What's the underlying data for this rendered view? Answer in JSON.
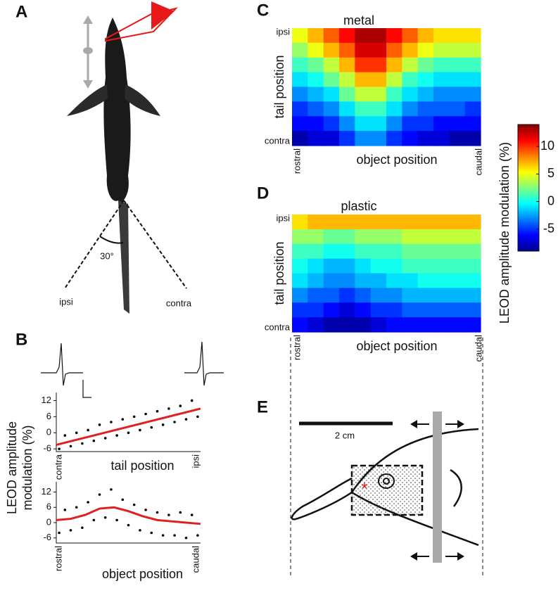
{
  "panel_labels": [
    "A",
    "B",
    "C",
    "D",
    "E"
  ],
  "diagram_a": {
    "angle": "30°",
    "left": "ipsi",
    "right": "contra"
  },
  "diagram_e": {
    "scale": "2 cm"
  },
  "panel_b": {
    "ylabel": [
      "LEOD amplitude",
      "modulation (%)"
    ]
  },
  "chart_data": [
    {
      "type": "scatter",
      "xlabel": "tail position",
      "x_end_labels": [
        "contra",
        "ipsi"
      ],
      "xlim": [
        0,
        1
      ],
      "ylim": [
        -7,
        15
      ],
      "yticks": [
        -6,
        0,
        6,
        12
      ],
      "color": "#000000",
      "x": [
        0.02,
        0.06,
        0.1,
        0.14,
        0.18,
        0.22,
        0.26,
        0.3,
        0.34,
        0.38,
        0.42,
        0.46,
        0.5,
        0.54,
        0.58,
        0.62,
        0.66,
        0.7,
        0.74,
        0.78,
        0.82,
        0.86,
        0.9,
        0.94,
        0.98
      ],
      "y": [
        -6,
        -1,
        -5,
        0,
        -4,
        1,
        -3,
        3,
        -2,
        4,
        -1,
        5,
        0,
        6,
        1,
        7,
        2,
        8,
        3,
        9,
        4,
        10,
        5,
        12,
        6
      ],
      "fit": {
        "color": "#e02020",
        "x": [
          0,
          1
        ],
        "y": [
          -4.5,
          9
        ]
      }
    },
    {
      "type": "scatter",
      "xlabel": "object position",
      "x_end_labels": [
        "rostral",
        "caudal"
      ],
      "xlim": [
        0,
        1
      ],
      "ylim": [
        -8,
        16
      ],
      "yticks": [
        -6,
        0,
        6,
        12
      ],
      "color": "#000000",
      "x": [
        0.02,
        0.06,
        0.1,
        0.14,
        0.18,
        0.22,
        0.26,
        0.3,
        0.34,
        0.38,
        0.42,
        0.46,
        0.5,
        0.54,
        0.58,
        0.62,
        0.66,
        0.7,
        0.74,
        0.78,
        0.82,
        0.86,
        0.9,
        0.94,
        0.98
      ],
      "y": [
        -4,
        5,
        -3,
        6,
        -2,
        8,
        1,
        11,
        2,
        13,
        1,
        9,
        -1,
        7,
        -3,
        5,
        -4,
        4,
        -5,
        3,
        -5,
        4,
        -6,
        3,
        -5
      ],
      "fit": {
        "color": "#e02020",
        "x": [
          0,
          0.1,
          0.2,
          0.3,
          0.4,
          0.5,
          0.6,
          0.7,
          0.8,
          0.9,
          1
        ],
        "y": [
          1,
          1.5,
          3,
          5.5,
          6,
          4.5,
          2.5,
          1,
          0.5,
          0,
          -0.5
        ]
      }
    },
    {
      "type": "heatmap",
      "title": "metal",
      "xlabel": "object position",
      "ylabel": "tail position",
      "x_end_labels": [
        "rostral",
        "caudal"
      ],
      "y_end_labels": [
        "ipsi",
        "contra"
      ],
      "clim": [
        -9,
        14
      ],
      "colormap": "jet",
      "z": [
        [
          5,
          7,
          9,
          11,
          13,
          13,
          11,
          9,
          7,
          6,
          6,
          6
        ],
        [
          3,
          5,
          7,
          9,
          12,
          12,
          9,
          7,
          5,
          4,
          4,
          4
        ],
        [
          1,
          2,
          4,
          7,
          10,
          10,
          7,
          4,
          2,
          1,
          1,
          1
        ],
        [
          -1,
          0,
          2,
          4,
          7,
          7,
          4,
          1,
          0,
          -1,
          -1,
          -1
        ],
        [
          -3,
          -2,
          -1,
          2,
          4,
          4,
          1,
          -1,
          -2,
          -3,
          -3,
          -3
        ],
        [
          -5,
          -4,
          -3,
          -1,
          1,
          1,
          -1,
          -3,
          -4,
          -4,
          -4,
          -5
        ],
        [
          -6,
          -6,
          -5,
          -3,
          -1,
          -1,
          -3,
          -5,
          -5,
          -6,
          -6,
          -6
        ],
        [
          -8,
          -7,
          -7,
          -5,
          -3,
          -3,
          -5,
          -6,
          -7,
          -7,
          -8,
          -8
        ]
      ]
    },
    {
      "type": "heatmap",
      "title": "plastic",
      "xlabel": "object position",
      "ylabel": "tail position",
      "x_end_labels": [
        "rostral",
        "caudal"
      ],
      "y_end_labels": [
        "ipsi",
        "contra"
      ],
      "clim": [
        -9,
        14
      ],
      "colormap": "jet",
      "z": [
        [
          6,
          7,
          7,
          7,
          7,
          7,
          7,
          7,
          7,
          7,
          7,
          7
        ],
        [
          3,
          3,
          2,
          2,
          3,
          3,
          3,
          4,
          4,
          4,
          4,
          4
        ],
        [
          1,
          1,
          0,
          0,
          1,
          1,
          1,
          2,
          2,
          2,
          2,
          2
        ],
        [
          0,
          -1,
          -2,
          -2,
          -1,
          0,
          0,
          1,
          1,
          1,
          1,
          1
        ],
        [
          -1,
          -2,
          -3,
          -3,
          -2,
          -2,
          -1,
          -1,
          0,
          0,
          0,
          0
        ],
        [
          -3,
          -4,
          -4,
          -5,
          -4,
          -3,
          -3,
          -2,
          -2,
          -2,
          -2,
          -2
        ],
        [
          -5,
          -5,
          -6,
          -7,
          -6,
          -5,
          -5,
          -4,
          -4,
          -4,
          -4,
          -4
        ],
        [
          -6,
          -7,
          -8,
          -8,
          -8,
          -7,
          -6,
          -6,
          -6,
          -6,
          -6,
          -6
        ]
      ]
    },
    {
      "type": "colorbar",
      "label": "LEOD amplitude modulation (%)",
      "lim": [
        -9,
        14
      ],
      "ticks": [
        10,
        5,
        0,
        -5
      ],
      "colormap": "jet"
    }
  ]
}
